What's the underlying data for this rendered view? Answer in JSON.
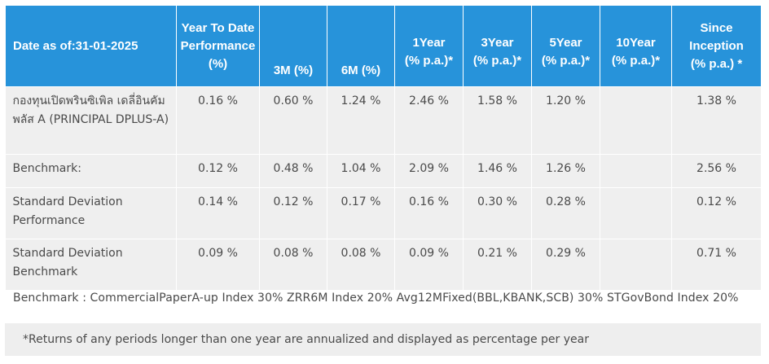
{
  "table": {
    "headers": {
      "date": "Date as of:31-01-2025",
      "ytd": [
        "Year To Date",
        "Performance",
        "(%)"
      ],
      "m3": "3M  (%)",
      "m6": "6M (%)",
      "y1": [
        "1Year",
        "(% p.a.)*"
      ],
      "y3": [
        "3Year",
        "(% p.a.)*"
      ],
      "y5": [
        "5Year",
        "(% p.a.)*"
      ],
      "y10": [
        "10Year",
        "(% p.a.)*"
      ],
      "since": [
        "Since",
        "Inception",
        "(% p.a.) *"
      ]
    },
    "rows": [
      {
        "name": "กองทุนเปิดพรินซิเพิล เดลี่อินคัม พลัส A (PRINCIPAL DPLUS-A)",
        "values": [
          "0.16 %",
          "0.60 %",
          "1.24 %",
          "2.46 %",
          "1.58 %",
          "1.20 %",
          "",
          "1.38 %"
        ]
      },
      {
        "name": "Benchmark:",
        "values": [
          "0.12 %",
          "0.48 %",
          "1.04 %",
          "2.09 %",
          "1.46 %",
          "1.26 %",
          "",
          "2.56 %"
        ]
      },
      {
        "name": "Standard Deviation Performance",
        "values": [
          "0.14 %",
          "0.12 %",
          "0.17 %",
          "0.16 %",
          "0.30 %",
          "0.28 %",
          "",
          "0.12 %"
        ]
      },
      {
        "name": "Standard Deviation Benchmark",
        "values": [
          "0.09 %",
          "0.08 %",
          "0.08 %",
          "0.09 %",
          "0.21 %",
          "0.29 %",
          "",
          "0.71 %"
        ]
      }
    ]
  },
  "benchmark_note": "Benchmark : CommercialPaperA-up Index 30% ZRR6M Index 20% Avg12MFixed(BBL,KBANK,SCB) 30% STGovBond Index 20%",
  "footnote": "*Returns of any periods longer than one year are annualized and displayed as percentage per year",
  "colors": {
    "header_bg": "#2793da",
    "row_bg": "#efefef",
    "text": "#4a4a4a"
  }
}
